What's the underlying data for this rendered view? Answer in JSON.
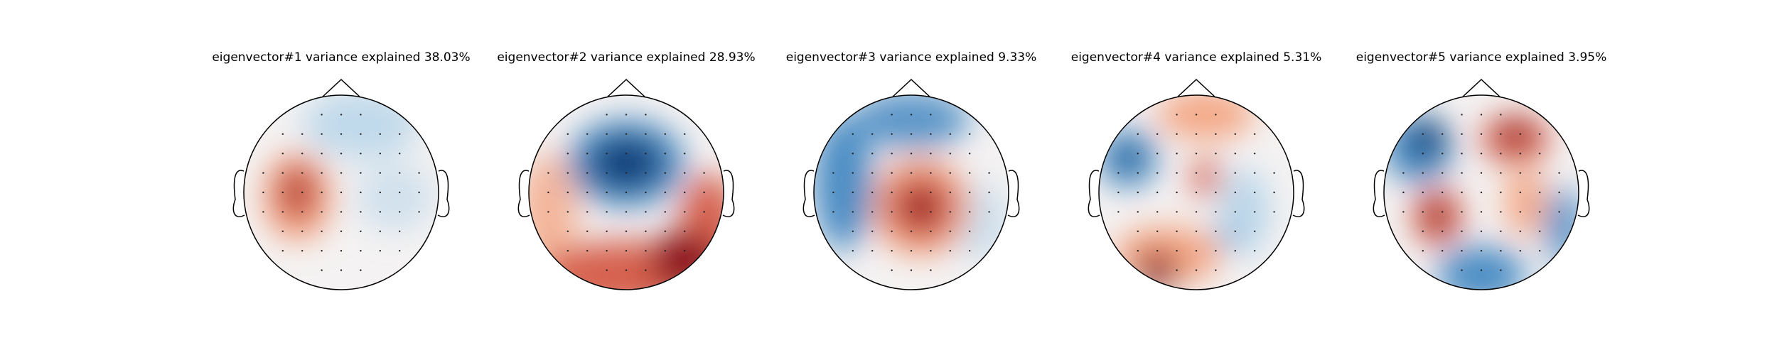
{
  "panels": [
    {
      "title": "eigenvector#1 variance explained 38.03%"
    },
    {
      "title": "eigenvector#2 variance explained 28.93%"
    },
    {
      "title": "eigenvector#3 variance explained 9.33%"
    },
    {
      "title": "eigenvector#4 variance explained 5.31%"
    },
    {
      "title": "eigenvector#5 variance explained 3.95%"
    }
  ]
}
